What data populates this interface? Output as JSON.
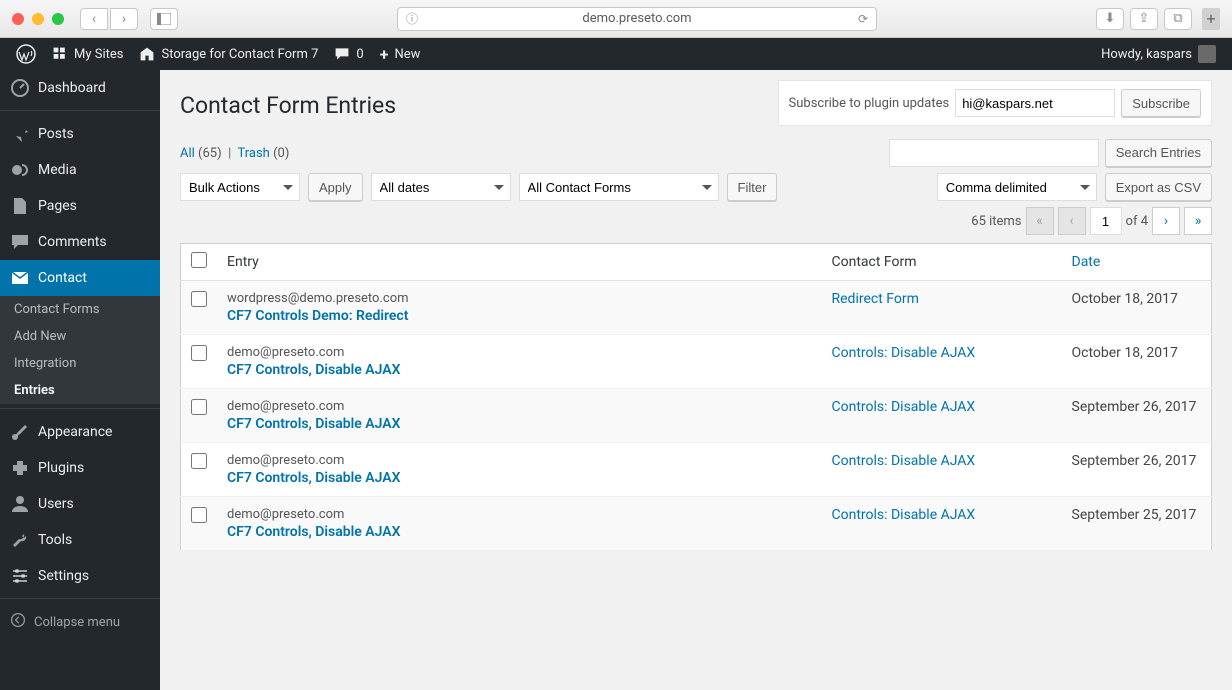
{
  "browser": {
    "url": "demo.preseto.com"
  },
  "adminbar": {
    "mysites": "My Sites",
    "sitename": "Storage for Contact Form 7",
    "comments_count": "0",
    "new": "New",
    "howdy": "Howdy, kaspars"
  },
  "sidebar": {
    "items": [
      {
        "label": "Dashboard"
      },
      {
        "label": "Posts"
      },
      {
        "label": "Media"
      },
      {
        "label": "Pages"
      },
      {
        "label": "Comments"
      },
      {
        "label": "Contact"
      },
      {
        "label": "Appearance"
      },
      {
        "label": "Plugins"
      },
      {
        "label": "Users"
      },
      {
        "label": "Tools"
      },
      {
        "label": "Settings"
      }
    ],
    "submenu": [
      {
        "label": "Contact Forms"
      },
      {
        "label": "Add New"
      },
      {
        "label": "Integration"
      },
      {
        "label": "Entries"
      }
    ],
    "collapse": "Collapse menu"
  },
  "page": {
    "title": "Contact Form Entries",
    "subscribe_label": "Subscribe to plugin updates",
    "subscribe_email": "hi@kaspars.net",
    "subscribe_btn": "Subscribe",
    "filters": {
      "all": "All",
      "all_count": "(65)",
      "trash": "Trash",
      "trash_count": "(0)"
    },
    "search_btn": "Search Entries",
    "bulk_actions": "Bulk Actions",
    "apply": "Apply",
    "all_dates": "All dates",
    "all_forms": "All Contact Forms",
    "filter": "Filter",
    "export_fmt": "Comma delimited",
    "export_btn": "Export as CSV",
    "items_count": "65 items",
    "page_current": "1",
    "page_total": "of 4"
  },
  "table": {
    "columns": {
      "entry": "Entry",
      "form": "Contact Form",
      "date": "Date"
    },
    "rows": [
      {
        "email": "wordpress@demo.preseto.com",
        "title": "CF7 Controls Demo: Redirect",
        "form": "Redirect Form",
        "date": "October 18, 2017"
      },
      {
        "email": "demo@preseto.com",
        "title": "CF7 Controls, Disable AJAX",
        "form": "Controls: Disable AJAX",
        "date": "October 18, 2017"
      },
      {
        "email": "demo@preseto.com",
        "title": "CF7 Controls, Disable AJAX",
        "form": "Controls: Disable AJAX",
        "date": "September 26, 2017"
      },
      {
        "email": "demo@preseto.com",
        "title": "CF7 Controls, Disable AJAX",
        "form": "Controls: Disable AJAX",
        "date": "September 26, 2017"
      },
      {
        "email": "demo@preseto.com",
        "title": "CF7 Controls, Disable AJAX",
        "form": "Controls: Disable AJAX",
        "date": "September 25, 2017"
      }
    ]
  },
  "colors": {
    "link": "#0073aa",
    "sidebar_bg": "#23282d",
    "content_bg": "#f1f1f1"
  }
}
